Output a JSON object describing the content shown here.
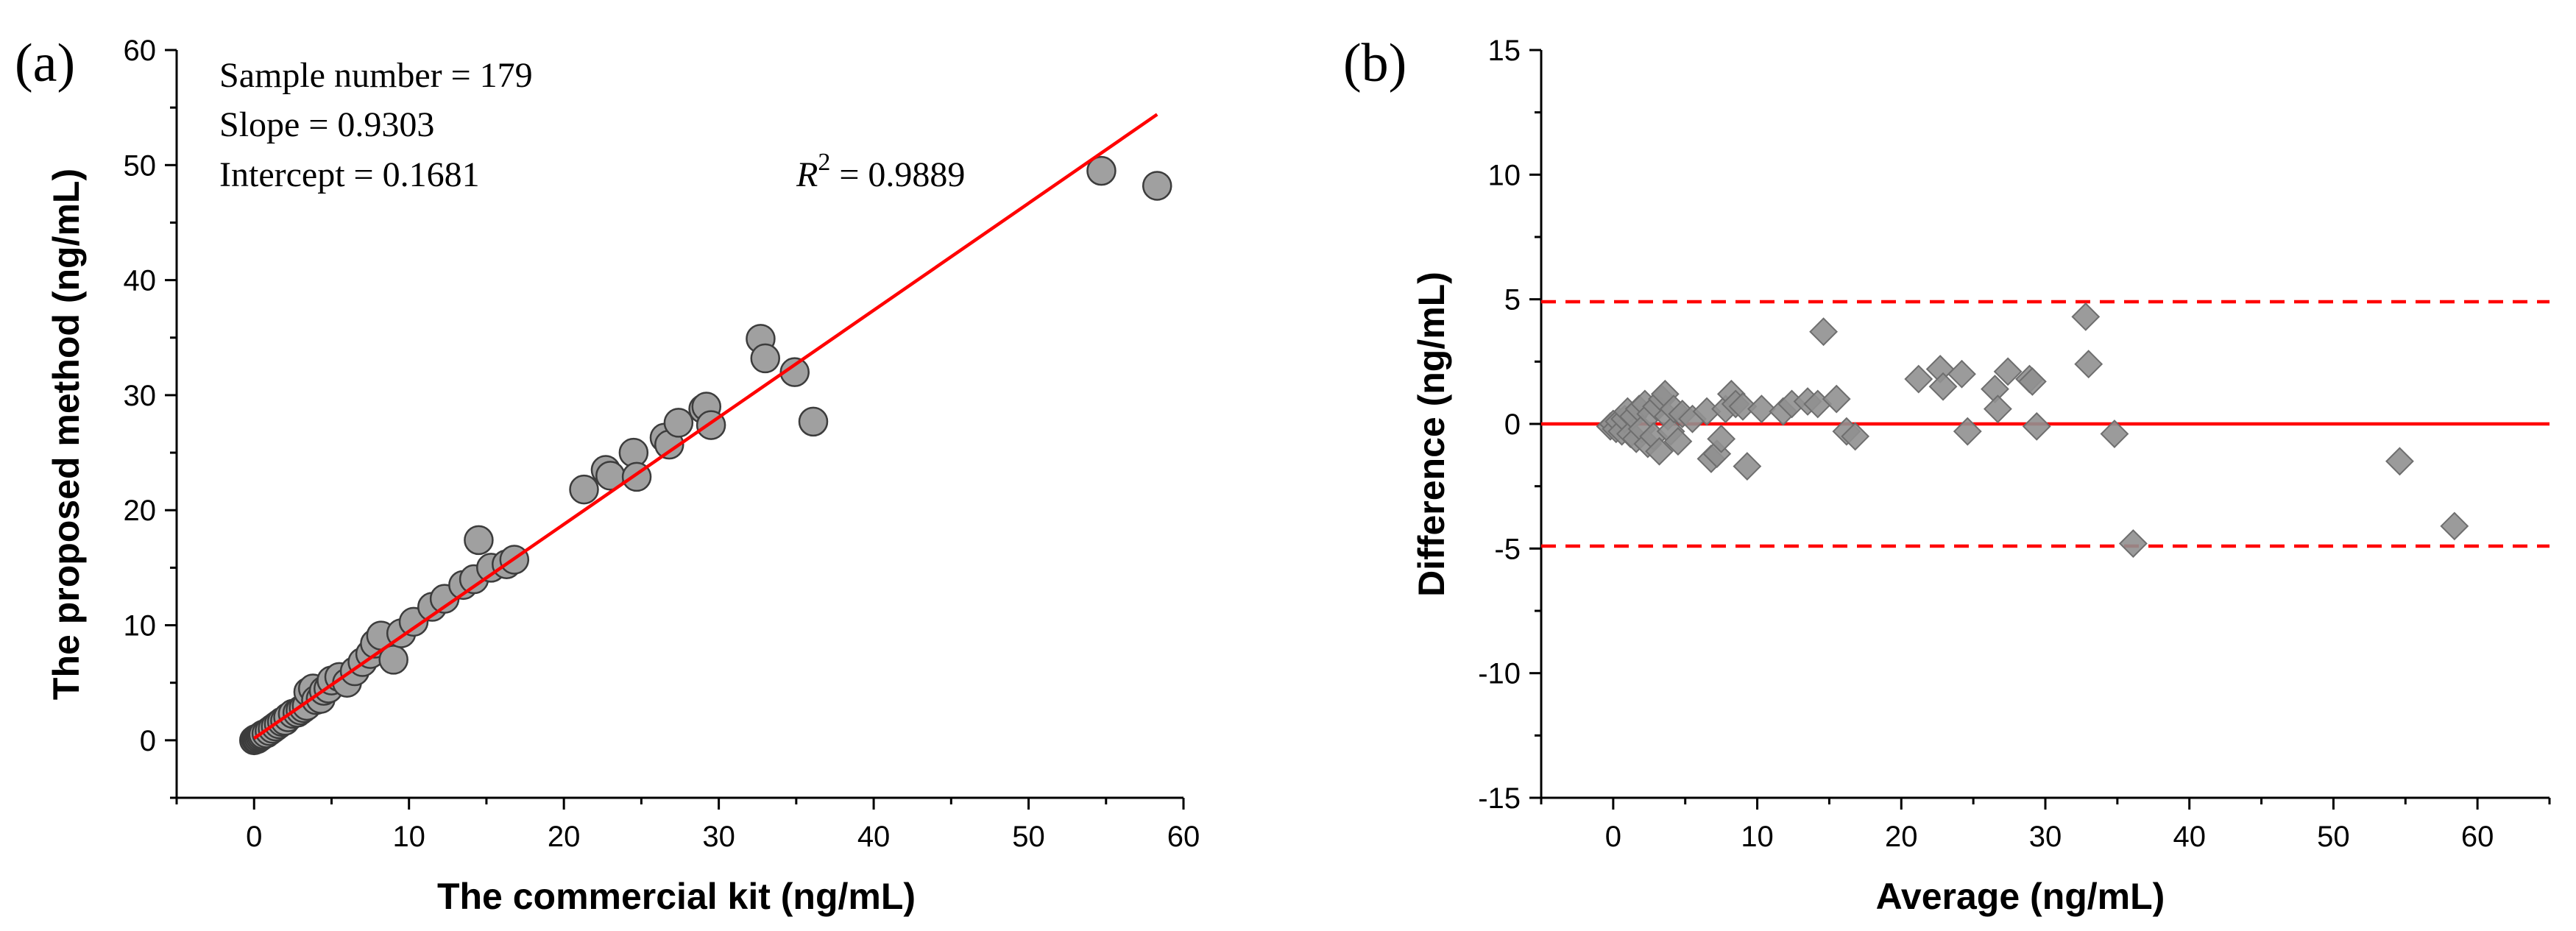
{
  "chart_data": [
    {
      "panel_label": "(a)",
      "type": "scatter",
      "xlabel": "The commercial kit (ng/mL)",
      "ylabel": "The proposed method (ng/mL)",
      "xlim": [
        -5,
        60
      ],
      "ylim": [
        -5,
        60
      ],
      "xticks": [
        0,
        10,
        20,
        30,
        40,
        50,
        60
      ],
      "yticks": [
        0,
        10,
        20,
        30,
        40,
        50,
        60
      ],
      "annotations": {
        "sample_number": "Sample number = 179",
        "slope": "Slope = 0.9303",
        "intercept": "Intercept = 0.1681",
        "r2_symbol": "R",
        "r2_sup": "2",
        "r2_value": " = 0.9889"
      },
      "fit_line": {
        "slope": 0.9303,
        "intercept": 0.1681,
        "x_range": [
          0,
          58.3
        ],
        "color": "#ff0000"
      },
      "marker_color": "#a0a0a0",
      "points": [
        [
          0,
          0
        ],
        [
          0.1,
          0.1
        ],
        [
          0.2,
          0.1
        ],
        [
          0.3,
          0.2
        ],
        [
          0.4,
          0.3
        ],
        [
          0.5,
          0.4
        ],
        [
          0.6,
          0.5
        ],
        [
          0.8,
          0.6
        ],
        [
          1.0,
          0.8
        ],
        [
          1.2,
          1.0
        ],
        [
          1.4,
          1.2
        ],
        [
          1.6,
          1.4
        ],
        [
          1.8,
          1.6
        ],
        [
          2.0,
          1.7
        ],
        [
          2.2,
          2.0
        ],
        [
          2.5,
          2.3
        ],
        [
          2.8,
          2.4
        ],
        [
          3.0,
          2.6
        ],
        [
          3.2,
          2.8
        ],
        [
          3.4,
          3.0
        ],
        [
          3.5,
          4.2
        ],
        [
          3.8,
          4.5
        ],
        [
          4.0,
          3.5
        ],
        [
          4.3,
          3.6
        ],
        [
          4.5,
          4.3
        ],
        [
          4.8,
          4.5
        ],
        [
          5.0,
          5.2
        ],
        [
          5.5,
          5.5
        ],
        [
          6.0,
          5.0
        ],
        [
          6.5,
          6.0
        ],
        [
          7.0,
          6.8
        ],
        [
          7.5,
          7.5
        ],
        [
          7.8,
          8.4
        ],
        [
          8.2,
          9.1
        ],
        [
          9.0,
          7.0
        ],
        [
          9.5,
          9.3
        ],
        [
          10.3,
          10.3
        ],
        [
          11.5,
          11.6
        ],
        [
          12.3,
          12.3
        ],
        [
          13.5,
          13.5
        ],
        [
          14.2,
          14.0
        ],
        [
          14.5,
          17.4
        ],
        [
          15.3,
          15.0
        ],
        [
          16.3,
          15.3
        ],
        [
          16.8,
          15.7
        ],
        [
          21.3,
          21.8
        ],
        [
          22.7,
          23.5
        ],
        [
          23.0,
          23.0
        ],
        [
          24.5,
          25.0
        ],
        [
          24.7,
          22.9
        ],
        [
          26.5,
          26.3
        ],
        [
          26.8,
          25.7
        ],
        [
          27.4,
          27.6
        ],
        [
          29.0,
          28.8
        ],
        [
          29.2,
          29.0
        ],
        [
          29.5,
          27.4
        ],
        [
          32.7,
          34.9
        ],
        [
          33.0,
          33.2
        ],
        [
          34.9,
          32.0
        ],
        [
          36.1,
          27.7
        ],
        [
          54.7,
          49.5
        ],
        [
          58.3,
          48.2
        ]
      ]
    },
    {
      "panel_label": "(b)",
      "type": "scatter",
      "xlabel": "Average (ng/mL)",
      "ylabel": "Difference (ng/mL)",
      "xlim": [
        -5,
        65
      ],
      "ylim": [
        -15,
        15
      ],
      "xticks": [
        0,
        10,
        20,
        30,
        40,
        50,
        60
      ],
      "yticks": [
        -15,
        -10,
        -5,
        0,
        5,
        10,
        15
      ],
      "mean_line": {
        "y": 0,
        "color": "#ff0000",
        "style": "solid"
      },
      "limit_lines": [
        {
          "y": 4.9,
          "color": "#ff0000",
          "style": "dashed"
        },
        {
          "y": -4.9,
          "color": "#ff0000",
          "style": "dashed"
        }
      ],
      "marker_color": "#909090",
      "points": [
        [
          -0.2,
          -0.1
        ],
        [
          0,
          0
        ],
        [
          0.2,
          -0.2
        ],
        [
          0.4,
          0.1
        ],
        [
          0.6,
          -0.3
        ],
        [
          0.8,
          0.2
        ],
        [
          1.0,
          0.5
        ],
        [
          1.2,
          -0.4
        ],
        [
          1.4,
          0.3
        ],
        [
          1.6,
          -0.6
        ],
        [
          1.8,
          0.6
        ],
        [
          2.0,
          -0.2
        ],
        [
          2.2,
          0.8
        ],
        [
          2.4,
          -0.8
        ],
        [
          2.6,
          0.4
        ],
        [
          2.8,
          -0.5
        ],
        [
          3.0,
          0.7
        ],
        [
          3.2,
          -1.1
        ],
        [
          3.4,
          1.0
        ],
        [
          3.6,
          1.2
        ],
        [
          3.8,
          0.3
        ],
        [
          4.0,
          -0.3
        ],
        [
          4.2,
          0.6
        ],
        [
          4.5,
          -0.7
        ],
        [
          4.8,
          0.4
        ],
        [
          5.5,
          0.2
        ],
        [
          6.5,
          0.5
        ],
        [
          6.8,
          -1.4
        ],
        [
          7.2,
          -1.2
        ],
        [
          7.5,
          -0.6
        ],
        [
          7.8,
          0.6
        ],
        [
          8.2,
          1.2
        ],
        [
          8.5,
          0.8
        ],
        [
          9.0,
          0.7
        ],
        [
          9.3,
          -1.7
        ],
        [
          10.3,
          0.6
        ],
        [
          11.8,
          0.5
        ],
        [
          12.4,
          0.8
        ],
        [
          13.5,
          0.9
        ],
        [
          14.2,
          0.8
        ],
        [
          14.6,
          3.7
        ],
        [
          15.5,
          1.0
        ],
        [
          16.2,
          -0.3
        ],
        [
          16.8,
          -0.5
        ],
        [
          21.2,
          1.8
        ],
        [
          22.7,
          2.2
        ],
        [
          22.9,
          1.5
        ],
        [
          24.2,
          2.0
        ],
        [
          24.6,
          -0.3
        ],
        [
          26.5,
          1.4
        ],
        [
          26.7,
          0.6
        ],
        [
          27.4,
          2.1
        ],
        [
          28.9,
          1.8
        ],
        [
          29.1,
          1.7
        ],
        [
          29.4,
          -0.1
        ],
        [
          32.8,
          4.3
        ],
        [
          33.0,
          2.4
        ],
        [
          34.8,
          -0.4
        ],
        [
          36.1,
          -4.8
        ],
        [
          54.6,
          -1.5
        ],
        [
          58.4,
          -4.1
        ]
      ]
    }
  ]
}
